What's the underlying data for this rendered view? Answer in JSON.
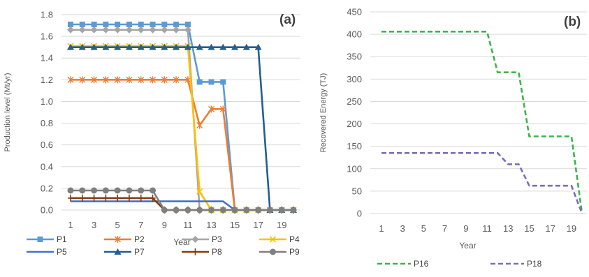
{
  "chart_data": [
    {
      "type": "line",
      "panel_label": "(a)",
      "title": "",
      "xlabel": "Year",
      "ylabel": "Production level (Mt/yr)",
      "ylim": [
        0,
        1.8
      ],
      "yticks": [
        "0.0",
        "0.2",
        "0.4",
        "0.6",
        "0.8",
        "1.0",
        "1.2",
        "1.4",
        "1.6",
        "1.8"
      ],
      "xticks": [
        1,
        3,
        5,
        7,
        9,
        11,
        13,
        15,
        17,
        19
      ],
      "x": [
        1,
        2,
        3,
        4,
        5,
        6,
        7,
        8,
        9,
        10,
        11,
        12,
        13,
        14,
        15,
        16,
        17,
        18,
        19,
        20
      ],
      "grid": "horizontal",
      "legend_position": "bottom",
      "series": [
        {
          "name": "P1",
          "color": "#5b9bd5",
          "marker": "square",
          "values": [
            1.71,
            1.71,
            1.71,
            1.71,
            1.71,
            1.71,
            1.71,
            1.71,
            1.71,
            1.71,
            1.71,
            1.18,
            1.18,
            1.18,
            0,
            0,
            0,
            0,
            0,
            0
          ]
        },
        {
          "name": "P2",
          "color": "#ed7d31",
          "marker": "star",
          "values": [
            1.2,
            1.2,
            1.2,
            1.2,
            1.2,
            1.2,
            1.2,
            1.2,
            1.2,
            1.2,
            1.2,
            0.78,
            0.93,
            0.93,
            0,
            0,
            0,
            0,
            0,
            0
          ]
        },
        {
          "name": "P3",
          "color": "#a5a5a5",
          "marker": "diamond",
          "values": [
            1.66,
            1.66,
            1.66,
            1.66,
            1.66,
            1.66,
            1.66,
            1.66,
            1.66,
            1.66,
            1.66,
            0,
            0,
            0,
            0,
            0,
            0,
            0,
            0,
            0
          ]
        },
        {
          "name": "P4",
          "color": "#ffc000",
          "marker": "x",
          "values": [
            1.51,
            1.51,
            1.51,
            1.51,
            1.51,
            1.51,
            1.51,
            1.51,
            1.51,
            1.51,
            1.51,
            0.17,
            0,
            0,
            0,
            0,
            0,
            0,
            0,
            0
          ]
        },
        {
          "name": "P5",
          "color": "#4472c4",
          "marker": "none",
          "values": [
            0.08,
            0.08,
            0.08,
            0.08,
            0.08,
            0.08,
            0.08,
            0.08,
            0.08,
            0.08,
            0.08,
            0.08,
            0.08,
            0.08,
            0,
            0,
            0,
            0,
            0,
            0
          ]
        },
        {
          "name": "P7",
          "color": "#255e91",
          "marker": "triangle",
          "values": [
            1.5,
            1.5,
            1.5,
            1.5,
            1.5,
            1.5,
            1.5,
            1.5,
            1.5,
            1.5,
            1.5,
            1.5,
            1.5,
            1.5,
            1.5,
            1.5,
            1.5,
            0,
            0,
            0
          ]
        },
        {
          "name": "P8",
          "color": "#843c0c",
          "marker": "plus",
          "values": [
            0.11,
            0.11,
            0.11,
            0.11,
            0.11,
            0.11,
            0.11,
            0.11,
            0,
            0,
            0,
            0,
            0,
            0,
            0,
            0,
            0,
            0,
            0,
            0
          ]
        },
        {
          "name": "P9",
          "color": "#7f7f7f",
          "marker": "circle",
          "values": [
            0.18,
            0.18,
            0.18,
            0.18,
            0.18,
            0.18,
            0.18,
            0.18,
            0,
            0,
            0,
            0,
            0,
            0,
            0,
            0,
            0,
            0,
            0,
            0
          ]
        }
      ]
    },
    {
      "type": "line",
      "panel_label": "(b)",
      "title": "",
      "xlabel": "Year",
      "ylabel": "Recovered Energy (TJ)",
      "ylim": [
        0,
        450
      ],
      "yticks": [
        "0",
        "50",
        "100",
        "150",
        "200",
        "250",
        "300",
        "350",
        "400",
        "450"
      ],
      "xticks": [
        1,
        3,
        5,
        7,
        9,
        11,
        13,
        15,
        17,
        19
      ],
      "x": [
        1,
        2,
        3,
        4,
        5,
        6,
        7,
        8,
        9,
        10,
        11,
        12,
        13,
        14,
        15,
        16,
        17,
        18,
        19,
        20
      ],
      "grid": "horizontal",
      "legend_position": "bottom",
      "series": [
        {
          "name": "P16",
          "color": "#3cb44b",
          "style": "dashed",
          "values": [
            406,
            406,
            406,
            406,
            406,
            406,
            406,
            406,
            406,
            406,
            406,
            315,
            315,
            315,
            172,
            172,
            172,
            172,
            172,
            0
          ]
        },
        {
          "name": "P18",
          "color": "#7d6db5",
          "style": "dashed",
          "values": [
            135,
            135,
            135,
            135,
            135,
            135,
            135,
            135,
            135,
            135,
            135,
            135,
            110,
            110,
            62,
            62,
            62,
            62,
            62,
            0
          ]
        }
      ]
    }
  ]
}
